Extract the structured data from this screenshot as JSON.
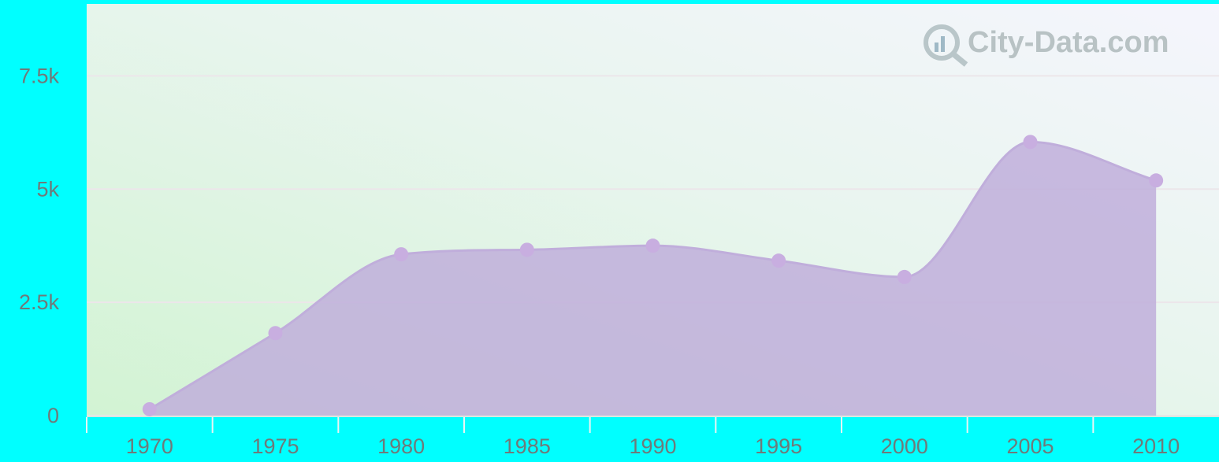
{
  "chart_data": {
    "type": "area",
    "watermark": "City-Data.com",
    "categories": [
      "1970",
      "1975",
      "1980",
      "1985",
      "1990",
      "1995",
      "2000",
      "2005",
      "2010"
    ],
    "values": [
      140,
      1820,
      3560,
      3660,
      3750,
      3420,
      3060,
      6040,
      5190
    ],
    "color": "#c0aedb",
    "ylim": [
      0,
      9000
    ],
    "yticks": [
      0,
      {
        "value": 2500,
        "label": "2.5k"
      },
      {
        "value": 5000,
        "label": "5k"
      },
      {
        "value": 7500,
        "label": "7.5k"
      }
    ],
    "grid": true
  }
}
